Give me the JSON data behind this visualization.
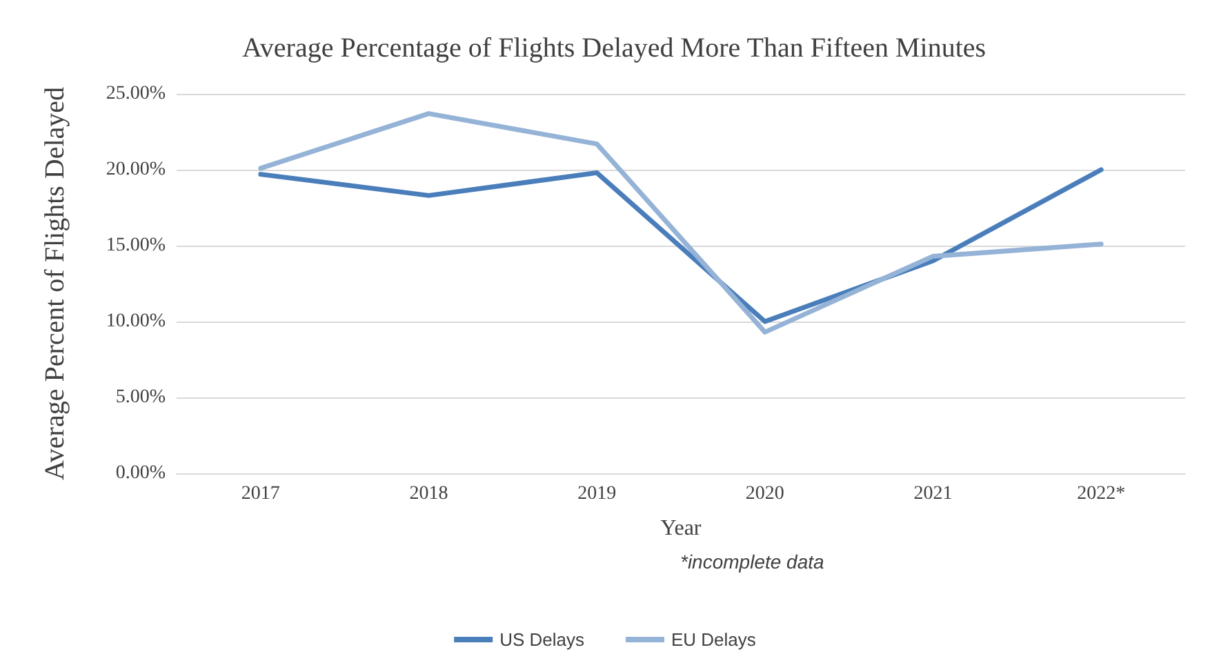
{
  "chart_data": {
    "type": "line",
    "title": "Average Percentage of Flights Delayed More Than Fifteen Minutes",
    "xlabel": "Year",
    "ylabel": "Average Percent of Flights Delayed",
    "annotations": [
      "*incomplete data"
    ],
    "categories": [
      "2017",
      "2018",
      "2019",
      "2020",
      "2021",
      "2022*"
    ],
    "series": [
      {
        "name": "US Delays",
        "color": "#4a7ebb",
        "values": [
          19.7,
          18.3,
          19.8,
          10.0,
          14.0,
          20.0
        ]
      },
      {
        "name": "EU Delays",
        "color": "#95b3d7",
        "values": [
          20.1,
          23.7,
          21.7,
          9.3,
          14.3,
          15.1
        ]
      }
    ],
    "ylim": [
      0,
      25
    ],
    "yticks": [
      {
        "value": 0,
        "label": "0.00%"
      },
      {
        "value": 5,
        "label": "5.00%"
      },
      {
        "value": 10,
        "label": "10.00%"
      },
      {
        "value": 15,
        "label": "15.00%"
      },
      {
        "value": 20,
        "label": "20.00%"
      },
      {
        "value": 25,
        "label": "25.00%"
      }
    ],
    "grid": "y",
    "legend": "bottom",
    "marker": "none",
    "line_style": "solid"
  }
}
